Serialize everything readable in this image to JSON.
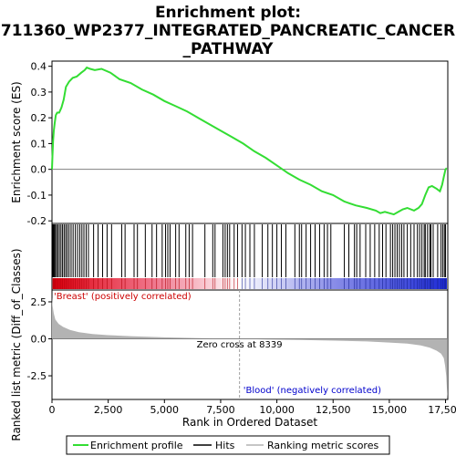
{
  "title_lines": [
    "Enrichment plot:",
    "711360_WP2377_INTEGRATED_PANCREATIC_CANCER",
    "_PATHWAY"
  ],
  "colors": {
    "enrichment_line": "#33dd33",
    "hits": "#000000",
    "metric_fill": "#b3b3b3",
    "zero_line": "#808080",
    "crossover_line": "#a0a0a0",
    "positive_band": "#e0000f",
    "negative_band": "#1e2bd6",
    "positive_label": "#cc0000",
    "negative_label": "#0000cc",
    "frame": "#000000"
  },
  "chart_data": [
    {
      "type": "line",
      "name": "enrichment-profile",
      "ylabel": "Enrichment score (ES)",
      "xlim": [
        0,
        17600
      ],
      "ylim": [
        -0.21,
        0.42
      ],
      "yticks": [
        -0.2,
        -0.1,
        0.0,
        0.1,
        0.2,
        0.3,
        0.4
      ],
      "ytick_labels": [
        "-0.2",
        "-0.1",
        "0.0",
        "0.1",
        "0.2",
        "0.3",
        "0.4"
      ],
      "x": [
        0,
        20,
        50,
        80,
        120,
        170,
        230,
        320,
        420,
        520,
        620,
        760,
        920,
        1100,
        1300,
        1450,
        1550,
        1700,
        1900,
        2200,
        2600,
        3000,
        3500,
        4000,
        4500,
        5000,
        5500,
        6000,
        6500,
        7000,
        7500,
        8000,
        8500,
        9000,
        9500,
        10000,
        10500,
        11000,
        11500,
        12000,
        12500,
        13000,
        13500,
        14000,
        14400,
        14600,
        14800,
        15000,
        15200,
        15400,
        15600,
        15800,
        16100,
        16300,
        16450,
        16600,
        16750,
        16900,
        17100,
        17250,
        17350,
        17420,
        17500,
        17550
      ],
      "y": [
        0.0,
        0.05,
        0.11,
        0.15,
        0.18,
        0.21,
        0.22,
        0.22,
        0.24,
        0.27,
        0.32,
        0.34,
        0.355,
        0.36,
        0.375,
        0.385,
        0.395,
        0.39,
        0.385,
        0.39,
        0.375,
        0.35,
        0.335,
        0.31,
        0.29,
        0.265,
        0.245,
        0.225,
        0.2,
        0.175,
        0.15,
        0.125,
        0.1,
        0.07,
        0.045,
        0.015,
        -0.015,
        -0.04,
        -0.06,
        -0.085,
        -0.1,
        -0.125,
        -0.14,
        -0.15,
        -0.16,
        -0.17,
        -0.165,
        -0.17,
        -0.175,
        -0.165,
        -0.155,
        -0.15,
        -0.16,
        -0.15,
        -0.135,
        -0.1,
        -0.07,
        -0.065,
        -0.075,
        -0.085,
        -0.06,
        -0.03,
        0.0,
        0.005
      ]
    },
    {
      "type": "line",
      "name": "hits",
      "description_free": true,
      "hit_positions": [
        20,
        60,
        100,
        150,
        200,
        260,
        330,
        400,
        470,
        540,
        610,
        680,
        760,
        850,
        940,
        1040,
        1140,
        1240,
        1330,
        1420,
        1520,
        1620,
        1850,
        2050,
        2250,
        2450,
        2650,
        3100,
        3250,
        3650,
        3800,
        4150,
        4450,
        4650,
        4900,
        5050,
        5150,
        5250,
        5500,
        5650,
        5950,
        6100,
        6250,
        6800,
        7150,
        7250,
        7600,
        7700,
        7800,
        7900,
        8100,
        8250,
        8450,
        8600,
        8800,
        9000,
        9350,
        9600,
        9800,
        10000,
        10200,
        10400,
        10800,
        11000,
        11100,
        11300,
        11500,
        11700,
        11900,
        12100,
        12250,
        12400,
        13000,
        13200,
        13450,
        13550,
        13700,
        13950,
        14150,
        14350,
        14550,
        14700,
        14850,
        15050,
        15150,
        15250,
        15350,
        15450,
        15550,
        15650,
        15800,
        15950,
        16100,
        16250,
        16350,
        16450,
        16550,
        16600,
        16700,
        16800,
        16850,
        16950,
        17150,
        17300,
        17380,
        17450,
        17500
      ]
    },
    {
      "type": "area",
      "name": "ranked-list-metric",
      "xlabel": "Rank in Ordered Dataset",
      "ylabel": "Ranked list metric (Diff_of_Classes)",
      "xlim": [
        0,
        17600
      ],
      "ylim": [
        -4.1,
        3.3
      ],
      "xticks": [
        0,
        2500,
        5000,
        7500,
        10000,
        12500,
        15000,
        17500
      ],
      "xtick_labels": [
        "0",
        "2,500",
        "5,000",
        "7,500",
        "10,000",
        "12,500",
        "15,000",
        "17,500"
      ],
      "yticks": [
        2.5,
        0.0,
        -2.5
      ],
      "ytick_labels": [
        "2.5",
        "0.0",
        "-2.5"
      ],
      "x": [
        0,
        30,
        80,
        150,
        300,
        500,
        800,
        1200,
        1800,
        2500,
        3500,
        5000,
        6500,
        8000,
        8339,
        9500,
        11000,
        12500,
        14000,
        15000,
        15800,
        16400,
        16800,
        17100,
        17300,
        17420,
        17480,
        17530,
        17560,
        17590
      ],
      "values": [
        2.8,
        2.2,
        1.7,
        1.3,
        1.0,
        0.8,
        0.6,
        0.45,
        0.32,
        0.25,
        0.18,
        0.1,
        0.05,
        0.01,
        0.0,
        -0.04,
        -0.08,
        -0.12,
        -0.18,
        -0.25,
        -0.32,
        -0.45,
        -0.6,
        -0.8,
        -1.0,
        -1.3,
        -1.8,
        -2.5,
        -3.3,
        -4.0
      ],
      "zero_cross_value": 8339,
      "zero_cross_label": "Zero cross at 8339",
      "positive_label": "'Breast' (positively correlated)",
      "negative_label": "'Blood' (negatively correlated)"
    }
  ],
  "legend": {
    "items": [
      {
        "label": "Enrichment profile",
        "style": "line-green"
      },
      {
        "label": "Hits",
        "style": "line-black"
      },
      {
        "label": "Ranking metric scores",
        "style": "line-gray"
      }
    ]
  }
}
